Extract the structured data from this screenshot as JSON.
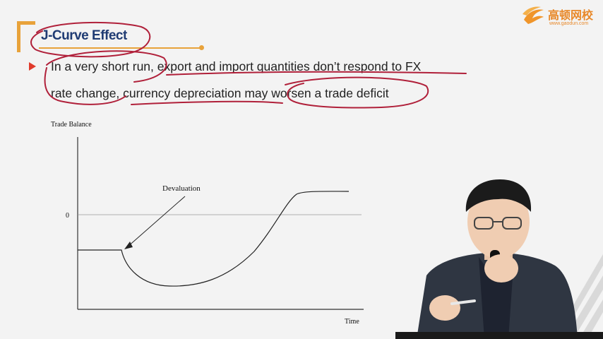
{
  "slide": {
    "title": "J-Curve Effect",
    "bullet_line1": "In a very short run, export and import quantities don’t respond to FX",
    "bullet_line2": "rate change, currency depreciation may worsen a trade deficit"
  },
  "logo": {
    "name": "高顿网校",
    "url": "www.gaodun.com"
  },
  "colors": {
    "accent": "#e8a23a",
    "title": "#1f3b73",
    "annotation": "#b0203a",
    "bullet": "#e03a2b"
  },
  "chart_data": {
    "type": "line",
    "title": "",
    "ylabel": "Trade Balance",
    "xlabel": "Time",
    "y_tick_labels": [
      "0"
    ],
    "annotation": "Devaluation",
    "series": [
      {
        "x": [
          0,
          1,
          2,
          3,
          4,
          5,
          6,
          7,
          8,
          9,
          10
        ],
        "y": [
          -1,
          -1,
          -1.6,
          -1.9,
          -1.85,
          -1.5,
          -0.9,
          -0.2,
          0.6,
          0.6,
          0.6
        ]
      }
    ],
    "grid": false
  }
}
